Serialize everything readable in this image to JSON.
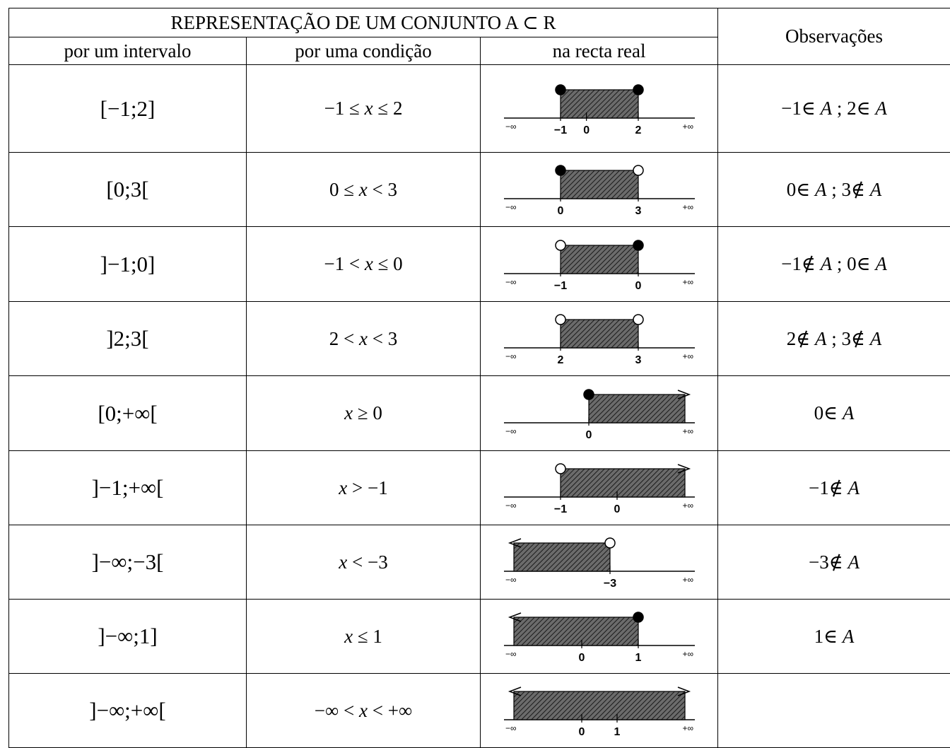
{
  "table": {
    "title": "REPRESENTAÇÃO DE UM CONJUNTO   A ⊂ R",
    "columns": {
      "interval": "por um intervalo",
      "condition": "por uma condição",
      "line": "na recta real",
      "observations": "Observações"
    },
    "rows": [
      {
        "interval": "[−1;2]",
        "condition": "−1 ≤ x ≤ 2",
        "observation": "−1∈ A ; 2∈ A",
        "line": {
          "left": -1,
          "right": 2,
          "left_closed": true,
          "right_closed": true,
          "left_inf": false,
          "right_inf": false,
          "ticks": [
            "−1",
            "0",
            "2"
          ],
          "neg_inf_label": "−∞",
          "pos_inf_label": "+∞"
        }
      },
      {
        "interval": "[0;3[",
        "condition": "0 ≤ x < 3",
        "observation": "0∈ A ; 3∉ A",
        "line": {
          "left": 0,
          "right": 3,
          "left_closed": true,
          "right_closed": false,
          "left_inf": false,
          "right_inf": false,
          "ticks": [
            "0",
            "3"
          ],
          "neg_inf_label": "−∞",
          "pos_inf_label": "+∞"
        }
      },
      {
        "interval": "]−1;0]",
        "condition": "−1 < x ≤ 0",
        "observation": "−1∉ A ; 0∈ A",
        "line": {
          "left": -1,
          "right": 0,
          "left_closed": false,
          "right_closed": true,
          "left_inf": false,
          "right_inf": false,
          "ticks": [
            "−1",
            "0"
          ],
          "neg_inf_label": "−∞",
          "pos_inf_label": "+∞"
        }
      },
      {
        "interval": "]2;3[",
        "condition": "2 < x < 3",
        "observation": "2∉ A ; 3∉ A",
        "line": {
          "left": 2,
          "right": 3,
          "left_closed": false,
          "right_closed": false,
          "left_inf": false,
          "right_inf": false,
          "ticks": [
            "2",
            "3"
          ],
          "neg_inf_label": "−∞",
          "pos_inf_label": "+∞"
        }
      },
      {
        "interval": "[0;+∞[",
        "condition": "x ≥ 0",
        "observation": "0∈ A",
        "line": {
          "left": 0,
          "right": null,
          "left_closed": true,
          "right_closed": false,
          "left_inf": false,
          "right_inf": true,
          "ticks": [
            "0"
          ],
          "neg_inf_label": "−∞",
          "pos_inf_label": "+∞"
        }
      },
      {
        "interval": "]−1;+∞[",
        "condition": "x > −1",
        "observation": "−1∉ A",
        "line": {
          "left": -1,
          "right": null,
          "left_closed": false,
          "right_closed": false,
          "left_inf": false,
          "right_inf": true,
          "ticks": [
            "−1",
            "0"
          ],
          "neg_inf_label": "−∞",
          "pos_inf_label": "+∞"
        }
      },
      {
        "interval": "]−∞;−3[",
        "condition": "x < −3",
        "observation": "−3∉ A",
        "line": {
          "left": null,
          "right": -3,
          "left_closed": false,
          "right_closed": false,
          "left_inf": true,
          "right_inf": false,
          "ticks": [
            "−3"
          ],
          "neg_inf_label": "−∞",
          "pos_inf_label": "+∞"
        }
      },
      {
        "interval": "]−∞;1]",
        "condition": "x ≤ 1",
        "observation": "1∈ A",
        "line": {
          "left": null,
          "right": 1,
          "left_closed": false,
          "right_closed": true,
          "left_inf": true,
          "right_inf": false,
          "ticks": [
            "0",
            "1"
          ],
          "neg_inf_label": "−∞",
          "pos_inf_label": "+∞"
        }
      },
      {
        "interval": "]−∞;+∞[",
        "condition": "−∞ < x < +∞",
        "observation": "",
        "line": {
          "left": null,
          "right": null,
          "left_closed": false,
          "right_closed": false,
          "left_inf": true,
          "right_inf": true,
          "ticks": [
            "0",
            "1"
          ],
          "neg_inf_label": "−∞",
          "pos_inf_label": "+∞"
        }
      }
    ]
  }
}
